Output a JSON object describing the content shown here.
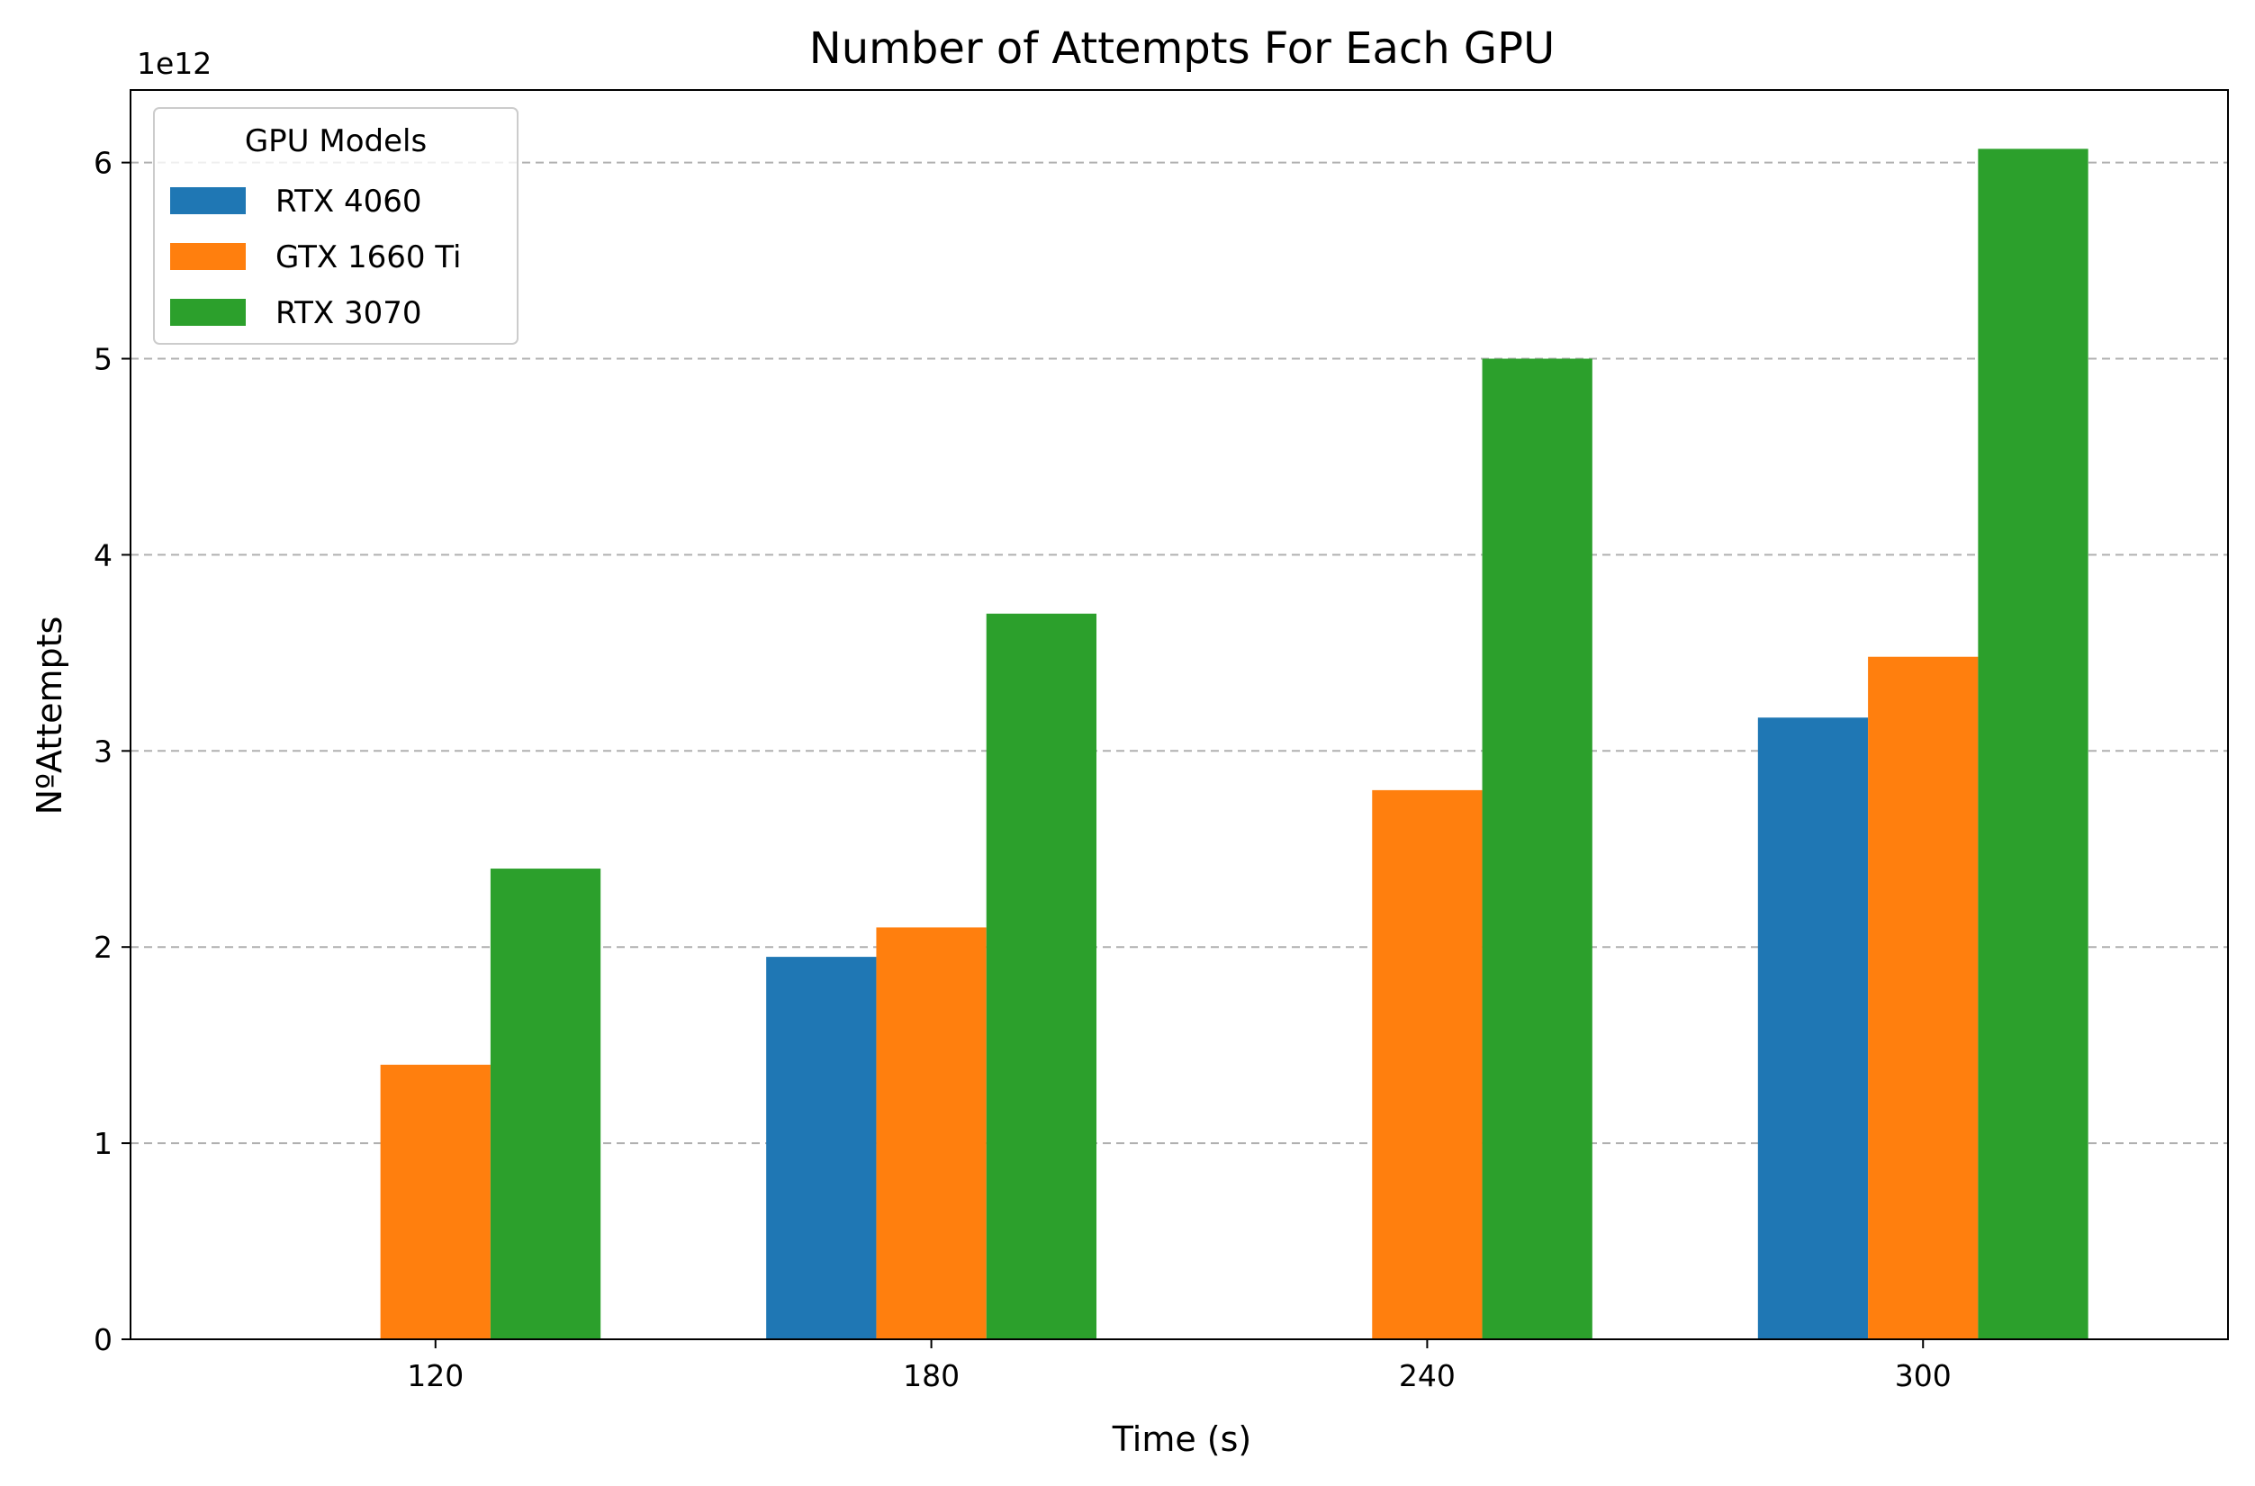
{
  "chart_data": {
    "type": "bar",
    "title": "Number of Attempts For Each GPU",
    "xlabel": "Time (s)",
    "ylabel": "NºAttempts",
    "y_offset_label": "1e12",
    "categories": [
      "120",
      "180",
      "240",
      "300"
    ],
    "y_ticks": [
      0,
      1,
      2,
      3,
      4,
      5,
      6
    ],
    "ylim": [
      0,
      6.37
    ],
    "grid": "y, dashed",
    "legend": {
      "title": "GPU Models",
      "placement": "top-left"
    },
    "series": [
      {
        "name": "RTX 4060",
        "color": "#1f77b4",
        "values": [
          0,
          1.95,
          0,
          3.17
        ]
      },
      {
        "name": "GTX 1660 Ti",
        "color": "#ff7f0e",
        "values": [
          1.4,
          2.1,
          2.8,
          3.48
        ]
      },
      {
        "name": "RTX 3070",
        "color": "#2ca02c",
        "values": [
          2.4,
          3.7,
          5.0,
          6.07
        ]
      }
    ]
  }
}
